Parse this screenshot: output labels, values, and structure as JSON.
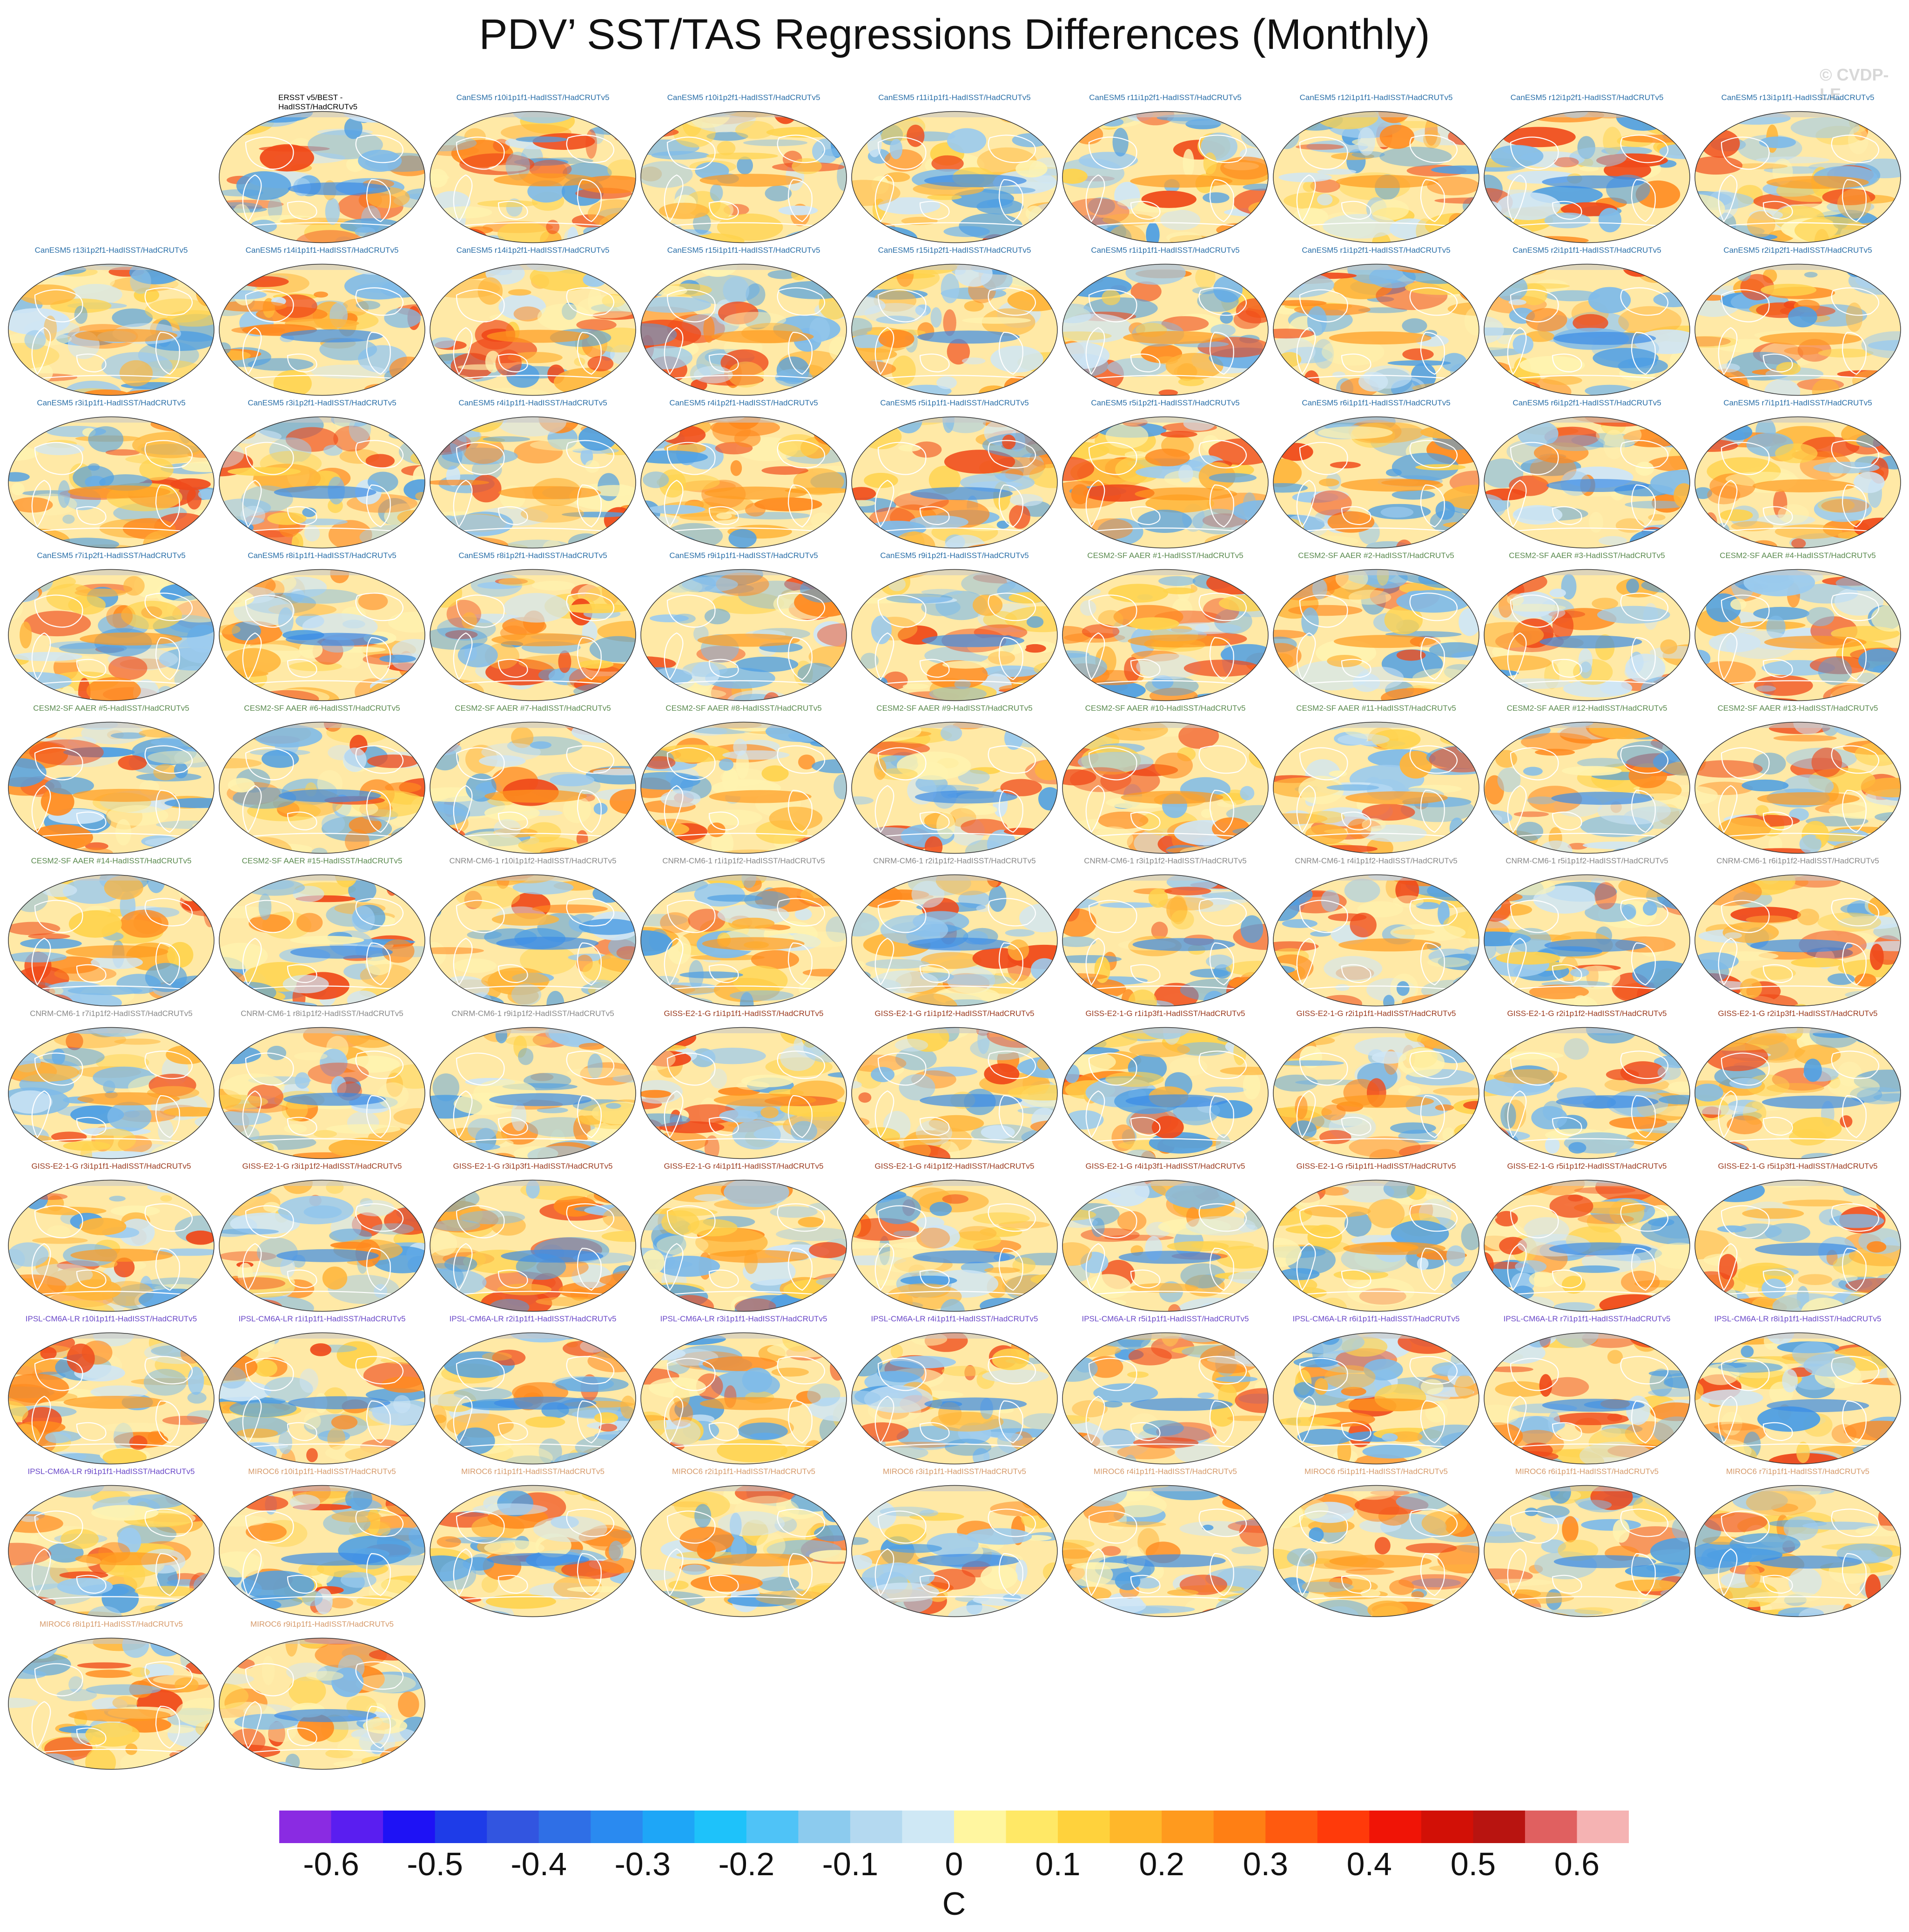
{
  "title": "PDV’ SST/TAS Regressions Differences (Monthly)",
  "credit": "© CVDP-LE",
  "colors": {
    "CanESM5": "#2a6fa8",
    "CESM2-SF AAER": "#5a8a4e",
    "CNRM-CM6-1": "#888888",
    "GISS-E2-1-G": "#9b3a1e",
    "IPSL-CM6A-LR": "#6a48c8",
    "MIROC6": "#d69a6a",
    "obs": "#000000"
  },
  "panels": [
    {
      "label": "ERSST v5/BEST - HadISST/HadCRUTv5",
      "group": "obs"
    },
    {
      "label": "CanESM5 r10i1p1f1-HadISST/HadCRUTv5",
      "group": "CanESM5"
    },
    {
      "label": "CanESM5 r10i1p2f1-HadISST/HadCRUTv5",
      "group": "CanESM5"
    },
    {
      "label": "CanESM5 r11i1p1f1-HadISST/HadCRUTv5",
      "group": "CanESM5"
    },
    {
      "label": "CanESM5 r11i1p2f1-HadISST/HadCRUTv5",
      "group": "CanESM5"
    },
    {
      "label": "CanESM5 r12i1p1f1-HadISST/HadCRUTv5",
      "group": "CanESM5"
    },
    {
      "label": "CanESM5 r12i1p2f1-HadISST/HadCRUTv5",
      "group": "CanESM5"
    },
    {
      "label": "CanESM5 r13i1p1f1-HadISST/HadCRUTv5",
      "group": "CanESM5"
    },
    {
      "label": "CanESM5 r13i1p2f1-HadISST/HadCRUTv5",
      "group": "CanESM5"
    },
    {
      "label": "CanESM5 r14i1p1f1-HadISST/HadCRUTv5",
      "group": "CanESM5"
    },
    {
      "label": "CanESM5 r14i1p2f1-HadISST/HadCRUTv5",
      "group": "CanESM5"
    },
    {
      "label": "CanESM5 r15i1p1f1-HadISST/HadCRUTv5",
      "group": "CanESM5"
    },
    {
      "label": "CanESM5 r15i1p2f1-HadISST/HadCRUTv5",
      "group": "CanESM5"
    },
    {
      "label": "CanESM5 r1i1p1f1-HadISST/HadCRUTv5",
      "group": "CanESM5"
    },
    {
      "label": "CanESM5 r1i1p2f1-HadISST/HadCRUTv5",
      "group": "CanESM5"
    },
    {
      "label": "CanESM5 r2i1p1f1-HadISST/HadCRUTv5",
      "group": "CanESM5"
    },
    {
      "label": "CanESM5 r2i1p2f1-HadISST/HadCRUTv5",
      "group": "CanESM5"
    },
    {
      "label": "CanESM5 r3i1p1f1-HadISST/HadCRUTv5",
      "group": "CanESM5"
    },
    {
      "label": "CanESM5 r3i1p2f1-HadISST/HadCRUTv5",
      "group": "CanESM5"
    },
    {
      "label": "CanESM5 r4i1p1f1-HadISST/HadCRUTv5",
      "group": "CanESM5"
    },
    {
      "label": "CanESM5 r4i1p2f1-HadISST/HadCRUTv5",
      "group": "CanESM5"
    },
    {
      "label": "CanESM5 r5i1p1f1-HadISST/HadCRUTv5",
      "group": "CanESM5"
    },
    {
      "label": "CanESM5 r5i1p2f1-HadISST/HadCRUTv5",
      "group": "CanESM5"
    },
    {
      "label": "CanESM5 r6i1p1f1-HadISST/HadCRUTv5",
      "group": "CanESM5"
    },
    {
      "label": "CanESM5 r6i1p2f1-HadISST/HadCRUTv5",
      "group": "CanESM5"
    },
    {
      "label": "CanESM5 r7i1p1f1-HadISST/HadCRUTv5",
      "group": "CanESM5"
    },
    {
      "label": "CanESM5 r7i1p2f1-HadISST/HadCRUTv5",
      "group": "CanESM5"
    },
    {
      "label": "CanESM5 r8i1p1f1-HadISST/HadCRUTv5",
      "group": "CanESM5"
    },
    {
      "label": "CanESM5 r8i1p2f1-HadISST/HadCRUTv5",
      "group": "CanESM5"
    },
    {
      "label": "CanESM5 r9i1p1f1-HadISST/HadCRUTv5",
      "group": "CanESM5"
    },
    {
      "label": "CanESM5 r9i1p2f1-HadISST/HadCRUTv5",
      "group": "CanESM5"
    },
    {
      "label": "CESM2-SF AAER #1-HadISST/HadCRUTv5",
      "group": "CESM2-SF AAER"
    },
    {
      "label": "CESM2-SF AAER #2-HadISST/HadCRUTv5",
      "group": "CESM2-SF AAER"
    },
    {
      "label": "CESM2-SF AAER #3-HadISST/HadCRUTv5",
      "group": "CESM2-SF AAER"
    },
    {
      "label": "CESM2-SF AAER #4-HadISST/HadCRUTv5",
      "group": "CESM2-SF AAER"
    },
    {
      "label": "CESM2-SF AAER #5-HadISST/HadCRUTv5",
      "group": "CESM2-SF AAER"
    },
    {
      "label": "CESM2-SF AAER #6-HadISST/HadCRUTv5",
      "group": "CESM2-SF AAER"
    },
    {
      "label": "CESM2-SF AAER #7-HadISST/HadCRUTv5",
      "group": "CESM2-SF AAER"
    },
    {
      "label": "CESM2-SF AAER #8-HadISST/HadCRUTv5",
      "group": "CESM2-SF AAER"
    },
    {
      "label": "CESM2-SF AAER #9-HadISST/HadCRUTv5",
      "group": "CESM2-SF AAER"
    },
    {
      "label": "CESM2-SF AAER #10-HadISST/HadCRUTv5",
      "group": "CESM2-SF AAER"
    },
    {
      "label": "CESM2-SF AAER #11-HadISST/HadCRUTv5",
      "group": "CESM2-SF AAER"
    },
    {
      "label": "CESM2-SF AAER #12-HadISST/HadCRUTv5",
      "group": "CESM2-SF AAER"
    },
    {
      "label": "CESM2-SF AAER #13-HadISST/HadCRUTv5",
      "group": "CESM2-SF AAER"
    },
    {
      "label": "CESM2-SF AAER #14-HadISST/HadCRUTv5",
      "group": "CESM2-SF AAER"
    },
    {
      "label": "CESM2-SF AAER #15-HadISST/HadCRUTv5",
      "group": "CESM2-SF AAER"
    },
    {
      "label": "CNRM-CM6-1 r10i1p1f2-HadISST/HadCRUTv5",
      "group": "CNRM-CM6-1"
    },
    {
      "label": "CNRM-CM6-1 r1i1p1f2-HadISST/HadCRUTv5",
      "group": "CNRM-CM6-1"
    },
    {
      "label": "CNRM-CM6-1 r2i1p1f2-HadISST/HadCRUTv5",
      "group": "CNRM-CM6-1"
    },
    {
      "label": "CNRM-CM6-1 r3i1p1f2-HadISST/HadCRUTv5",
      "group": "CNRM-CM6-1"
    },
    {
      "label": "CNRM-CM6-1 r4i1p1f2-HadISST/HadCRUTv5",
      "group": "CNRM-CM6-1"
    },
    {
      "label": "CNRM-CM6-1 r5i1p1f2-HadISST/HadCRUTv5",
      "group": "CNRM-CM6-1"
    },
    {
      "label": "CNRM-CM6-1 r6i1p1f2-HadISST/HadCRUTv5",
      "group": "CNRM-CM6-1"
    },
    {
      "label": "CNRM-CM6-1 r7i1p1f2-HadISST/HadCRUTv5",
      "group": "CNRM-CM6-1"
    },
    {
      "label": "CNRM-CM6-1 r8i1p1f2-HadISST/HadCRUTv5",
      "group": "CNRM-CM6-1"
    },
    {
      "label": "CNRM-CM6-1 r9i1p1f2-HadISST/HadCRUTv5",
      "group": "CNRM-CM6-1"
    },
    {
      "label": "GISS-E2-1-G r1i1p1f1-HadISST/HadCRUTv5",
      "group": "GISS-E2-1-G"
    },
    {
      "label": "GISS-E2-1-G r1i1p1f2-HadISST/HadCRUTv5",
      "group": "GISS-E2-1-G"
    },
    {
      "label": "GISS-E2-1-G r1i1p3f1-HadISST/HadCRUTv5",
      "group": "GISS-E2-1-G"
    },
    {
      "label": "GISS-E2-1-G r2i1p1f1-HadISST/HadCRUTv5",
      "group": "GISS-E2-1-G"
    },
    {
      "label": "GISS-E2-1-G r2i1p1f2-HadISST/HadCRUTv5",
      "group": "GISS-E2-1-G"
    },
    {
      "label": "GISS-E2-1-G r2i1p3f1-HadISST/HadCRUTv5",
      "group": "GISS-E2-1-G"
    },
    {
      "label": "GISS-E2-1-G r3i1p1f1-HadISST/HadCRUTv5",
      "group": "GISS-E2-1-G"
    },
    {
      "label": "GISS-E2-1-G r3i1p1f2-HadISST/HadCRUTv5",
      "group": "GISS-E2-1-G"
    },
    {
      "label": "GISS-E2-1-G r3i1p3f1-HadISST/HadCRUTv5",
      "group": "GISS-E2-1-G"
    },
    {
      "label": "GISS-E2-1-G r4i1p1f1-HadISST/HadCRUTv5",
      "group": "GISS-E2-1-G"
    },
    {
      "label": "GISS-E2-1-G r4i1p1f2-HadISST/HadCRUTv5",
      "group": "GISS-E2-1-G"
    },
    {
      "label": "GISS-E2-1-G r4i1p3f1-HadISST/HadCRUTv5",
      "group": "GISS-E2-1-G"
    },
    {
      "label": "GISS-E2-1-G r5i1p1f1-HadISST/HadCRUTv5",
      "group": "GISS-E2-1-G"
    },
    {
      "label": "GISS-E2-1-G r5i1p1f2-HadISST/HadCRUTv5",
      "group": "GISS-E2-1-G"
    },
    {
      "label": "GISS-E2-1-G r5i1p3f1-HadISST/HadCRUTv5",
      "group": "GISS-E2-1-G"
    },
    {
      "label": "IPSL-CM6A-LR r10i1p1f1-HadISST/HadCRUTv5",
      "group": "IPSL-CM6A-LR"
    },
    {
      "label": "IPSL-CM6A-LR r1i1p1f1-HadISST/HadCRUTv5",
      "group": "IPSL-CM6A-LR"
    },
    {
      "label": "IPSL-CM6A-LR r2i1p1f1-HadISST/HadCRUTv5",
      "group": "IPSL-CM6A-LR"
    },
    {
      "label": "IPSL-CM6A-LR r3i1p1f1-HadISST/HadCRUTv5",
      "group": "IPSL-CM6A-LR"
    },
    {
      "label": "IPSL-CM6A-LR r4i1p1f1-HadISST/HadCRUTv5",
      "group": "IPSL-CM6A-LR"
    },
    {
      "label": "IPSL-CM6A-LR r5i1p1f1-HadISST/HadCRUTv5",
      "group": "IPSL-CM6A-LR"
    },
    {
      "label": "IPSL-CM6A-LR r6i1p1f1-HadISST/HadCRUTv5",
      "group": "IPSL-CM6A-LR"
    },
    {
      "label": "IPSL-CM6A-LR r7i1p1f1-HadISST/HadCRUTv5",
      "group": "IPSL-CM6A-LR"
    },
    {
      "label": "IPSL-CM6A-LR r8i1p1f1-HadISST/HadCRUTv5",
      "group": "IPSL-CM6A-LR"
    },
    {
      "label": "IPSL-CM6A-LR r9i1p1f1-HadISST/HadCRUTv5",
      "group": "IPSL-CM6A-LR"
    },
    {
      "label": "MIROC6 r10i1p1f1-HadISST/HadCRUTv5",
      "group": "MIROC6"
    },
    {
      "label": "MIROC6 r1i1p1f1-HadISST/HadCRUTv5",
      "group": "MIROC6"
    },
    {
      "label": "MIROC6 r2i1p1f1-HadISST/HadCRUTv5",
      "group": "MIROC6"
    },
    {
      "label": "MIROC6 r3i1p1f1-HadISST/HadCRUTv5",
      "group": "MIROC6"
    },
    {
      "label": "MIROC6 r4i1p1f1-HadISST/HadCRUTv5",
      "group": "MIROC6"
    },
    {
      "label": "MIROC6 r5i1p1f1-HadISST/HadCRUTv5",
      "group": "MIROC6"
    },
    {
      "label": "MIROC6 r6i1p1f1-HadISST/HadCRUTv5",
      "group": "MIROC6"
    },
    {
      "label": "MIROC6 r7i1p1f1-HadISST/HadCRUTv5",
      "group": "MIROC6"
    },
    {
      "label": "MIROC6 r8i1p1f1-HadISST/HadCRUTv5",
      "group": "MIROC6"
    },
    {
      "label": "MIROC6 r9i1p1f1-HadISST/HadCRUTv5",
      "group": "MIROC6"
    }
  ],
  "colorbar": {
    "unit": "C",
    "tick_labels": [
      "-0.6",
      "-0.5",
      "-0.4",
      "-0.3",
      "-0.2",
      "-0.1",
      "0",
      "0.1",
      "0.2",
      "0.3",
      "0.4",
      "0.5",
      "0.6"
    ],
    "colors": [
      "#8a2be2",
      "#5a1ef0",
      "#1e12f5",
      "#1e3ce8",
      "#3255e0",
      "#2f6fe6",
      "#2a8af0",
      "#1ea6f7",
      "#1ec2fa",
      "#4fc3f7",
      "#8ccbee",
      "#b4d9f0",
      "#cfe8f5",
      "#fff6a0",
      "#ffe866",
      "#ffd23c",
      "#ffb72a",
      "#ff9a1e",
      "#ff7f14",
      "#ff5a0f",
      "#ff3a0a",
      "#f01406",
      "#d21006",
      "#b81410",
      "#e06060",
      "#f5b3b3"
    ]
  }
}
